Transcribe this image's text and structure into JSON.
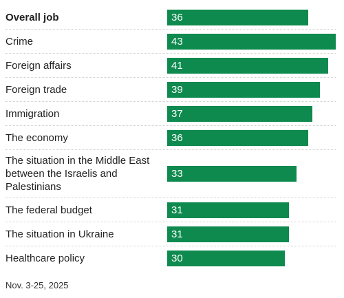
{
  "chart_data": {
    "type": "bar",
    "orientation": "horizontal",
    "categories": [
      "Overall job",
      "Crime",
      "Foreign affairs",
      "Foreign trade",
      "Immigration",
      "The economy",
      "The situation in the Middle East between the Israelis and Palestinians",
      "The federal budget",
      "The situation in Ukraine",
      "Healthcare policy"
    ],
    "values": [
      36,
      43,
      41,
      39,
      37,
      36,
      33,
      31,
      31,
      30
    ],
    "value_labels": [
      "36",
      "43",
      "41",
      "39",
      "37",
      "36",
      "33",
      "31",
      "31",
      "30"
    ],
    "bold_categories": [
      "Overall job"
    ],
    "bar_color": "#0e8a4f",
    "xlim": [
      0,
      43
    ],
    "grid": false,
    "legend": "none"
  },
  "footnote": "Nov. 3-25, 2025"
}
